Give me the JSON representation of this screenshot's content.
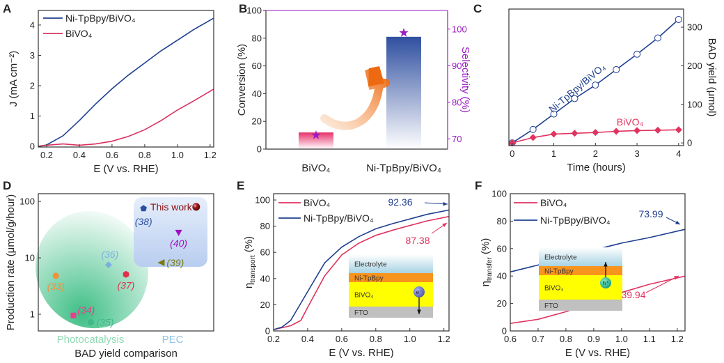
{
  "panel_letters": [
    "A",
    "B",
    "C",
    "D",
    "E",
    "F"
  ],
  "chart_data": [
    {
      "panel": "A",
      "type": "line",
      "xlabel": "E (V vs. RHE)",
      "ylabel": "J (mA cm⁻²)",
      "xlim": [
        0.149,
        1.222
      ],
      "ylim": [
        -0.02,
        4.48
      ],
      "xticks": [
        "0.2",
        "0.4",
        "0.6",
        "0.8",
        "1.0",
        "1.2"
      ],
      "yticks": [
        "0",
        "1",
        "2",
        "3",
        "4"
      ],
      "legend": "top-left",
      "series": [
        {
          "name": "Ni-TpBpy/BiVO₄",
          "color": "#1f3f8f",
          "x": [
            0.15,
            0.2,
            0.3,
            0.4,
            0.5,
            0.6,
            0.7,
            0.8,
            0.9,
            1.0,
            1.1,
            1.22
          ],
          "y": [
            0,
            0.05,
            0.35,
            0.85,
            1.4,
            1.9,
            2.35,
            2.75,
            3.15,
            3.5,
            3.85,
            4.22
          ]
        },
        {
          "name": "BiVO₄",
          "color": "#d9305f",
          "x": [
            0.15,
            0.2,
            0.3,
            0.4,
            0.5,
            0.6,
            0.7,
            0.8,
            0.9,
            1.0,
            1.1,
            1.22
          ],
          "y": [
            0,
            0.04,
            0.08,
            0.04,
            0.08,
            0.17,
            0.33,
            0.55,
            0.85,
            1.2,
            1.5,
            1.88
          ]
        }
      ]
    },
    {
      "panel": "B",
      "type": "bar",
      "categories": [
        "BiVO₄",
        "Ni-TpBpy/BiVO₄"
      ],
      "conversion": [
        12,
        81
      ],
      "selectivity": [
        71,
        99
      ],
      "ylabel": "Conversion (%)",
      "y2label": "Selectivity (%)",
      "ylim": [
        0,
        100
      ],
      "y2lim": [
        67.2,
        105.1
      ],
      "yticks": [
        "0",
        "20",
        "40",
        "60",
        "80",
        "100"
      ],
      "y2ticks": [
        "70",
        "80",
        "90",
        "100"
      ],
      "colors": {
        "bivo4": "#e8316a",
        "ni": "#2f4fa0",
        "star": "#9b1bc4",
        "arrow": "#ee7a22",
        "y2": "#9b1bc4"
      }
    },
    {
      "panel": "C",
      "type": "line",
      "xlabel": "Time (hours)",
      "ylabel": "BAD yield (μmol)",
      "xlim": [
        -0.08,
        4.12
      ],
      "ylim": [
        -7,
        347
      ],
      "xticks": [
        "0",
        "1",
        "2",
        "3",
        "4"
      ],
      "yticks": [
        "0",
        "100",
        "200",
        "300"
      ],
      "series": [
        {
          "name": "Ni-TpBpy/BiVO₄",
          "color": "#1f3f8f",
          "marker": "open-circle",
          "x": [
            0,
            0.5,
            1,
            1.5,
            2,
            2.5,
            3,
            3.5,
            4
          ],
          "y": [
            0,
            35,
            75,
            115,
            150,
            190,
            230,
            272,
            320
          ]
        },
        {
          "name": "BiVO₄",
          "color": "#e0335f",
          "marker": "diamond",
          "x": [
            0,
            0.5,
            1,
            1.5,
            2,
            2.5,
            3,
            3.5,
            4
          ],
          "y": [
            0,
            14,
            23,
            25,
            27,
            30,
            32,
            33,
            34
          ]
        }
      ]
    },
    {
      "panel": "D",
      "type": "scatter",
      "ylog": true,
      "xlabel": "BAD yield comparison",
      "ylabel": "Production rate (μmol/g/hour)",
      "xlim": [
        0,
        1
      ],
      "ylim": [
        0.505,
        137
      ],
      "yticks": [
        "1",
        "10",
        "100"
      ],
      "groups": [
        {
          "name": "Photocatalysis",
          "color": "#8fdab4"
        },
        {
          "name": "PEC",
          "color": "#8fc3e4"
        }
      ],
      "points": [
        {
          "label": "(33)",
          "x": 0.1,
          "y": 4.8,
          "marker": "circle",
          "color": "#f0913a"
        },
        {
          "label": "(34)",
          "x": 0.2,
          "y": 0.95,
          "marker": "square",
          "color": "#e8408a"
        },
        {
          "label": "(35)",
          "x": 0.3,
          "y": 0.72,
          "marker": "circle",
          "color": "#3fb88a"
        },
        {
          "label": "(36)",
          "x": 0.4,
          "y": 7.5,
          "marker": "diamond",
          "color": "#7ab0e0"
        },
        {
          "label": "(37)",
          "x": 0.5,
          "y": 5.1,
          "marker": "hexagon",
          "color": "#e0304a"
        },
        {
          "label": "(38)",
          "x": 0.6,
          "y": 75,
          "marker": "pentagon",
          "color": "#2a4fa0"
        },
        {
          "label": "(39)",
          "x": 0.7,
          "y": 8.2,
          "marker": "triangle-left",
          "color": "#7a7a10"
        },
        {
          "label": "(40)",
          "x": 0.8,
          "y": 28,
          "marker": "triangle-down",
          "color": "#9a10c0"
        },
        {
          "label": "This work",
          "x": 0.9,
          "y": 80,
          "marker": "sphere",
          "color": "#8a1010"
        }
      ]
    },
    {
      "panel": "E",
      "type": "line",
      "xlabel": "E (V vs. RHE)",
      "ylabel": "η",
      "ylabel_sub": "transport",
      "ylabel_suffix": " (%)",
      "xlim": [
        0.2,
        1.23
      ],
      "ylim": [
        0,
        104.8
      ],
      "xticks": [
        "0.2",
        "0.4",
        "0.6",
        "0.8",
        "1.0",
        "1.2"
      ],
      "yticks": [
        "0",
        "20",
        "40",
        "60",
        "80",
        "100"
      ],
      "series": [
        {
          "name": "BiVO₄",
          "color": "#e0335f",
          "x": [
            0.2,
            0.3,
            0.36,
            0.4,
            0.5,
            0.6,
            0.7,
            0.8,
            0.9,
            1.0,
            1.1,
            1.23
          ],
          "y": [
            1,
            4,
            8,
            18,
            42,
            58,
            67,
            73,
            77,
            80.5,
            84,
            87.38
          ]
        },
        {
          "name": "Ni-TpBpy/BiVO₄",
          "color": "#1f3f8f",
          "x": [
            0.2,
            0.25,
            0.3,
            0.4,
            0.5,
            0.6,
            0.7,
            0.8,
            0.9,
            1.0,
            1.1,
            1.23
          ],
          "y": [
            1,
            3,
            8,
            30,
            52,
            64,
            72,
            78,
            82,
            85.5,
            89,
            92.36
          ]
        }
      ],
      "annotations": [
        "92.36",
        "87.38"
      ],
      "inset": {
        "layers": [
          "Electrolyte",
          "Ni-TpBpy",
          "BiVO₄",
          "FTO"
        ],
        "carrier": "e⁻"
      }
    },
    {
      "panel": "F",
      "type": "line",
      "xlabel": "E (V vs. RHE)",
      "ylabel": "η",
      "ylabel_sub": "transfer",
      "ylabel_suffix": " (%)",
      "xlim": [
        0.6,
        1.228
      ],
      "ylim": [
        0,
        100
      ],
      "xticks": [
        "0.6",
        "0.7",
        "0.8",
        "0.9",
        "1.0",
        "1.1",
        "1.2"
      ],
      "yticks": [
        "0",
        "20",
        "40",
        "60",
        "80",
        "100"
      ],
      "series": [
        {
          "name": "BiVO₄",
          "color": "#e0335f",
          "x": [
            0.6,
            0.7,
            0.8,
            0.9,
            1.0,
            1.1,
            1.228
          ],
          "y": [
            5.5,
            8.5,
            14,
            21,
            28,
            34,
            39.94
          ]
        },
        {
          "name": "Ni-TpBpy/BiVO₄",
          "color": "#1f3f8f",
          "x": [
            0.6,
            0.7,
            0.8,
            0.9,
            1.0,
            1.1,
            1.228
          ],
          "y": [
            43,
            48,
            54,
            59,
            64,
            68,
            73.99
          ]
        }
      ],
      "annotations": [
        "73.99",
        "39.94"
      ],
      "inset": {
        "layers": [
          "Electrolyte",
          "Ni-TpBpy",
          "BiVO₄",
          "FTO"
        ],
        "carrier": "h⁺"
      }
    }
  ]
}
